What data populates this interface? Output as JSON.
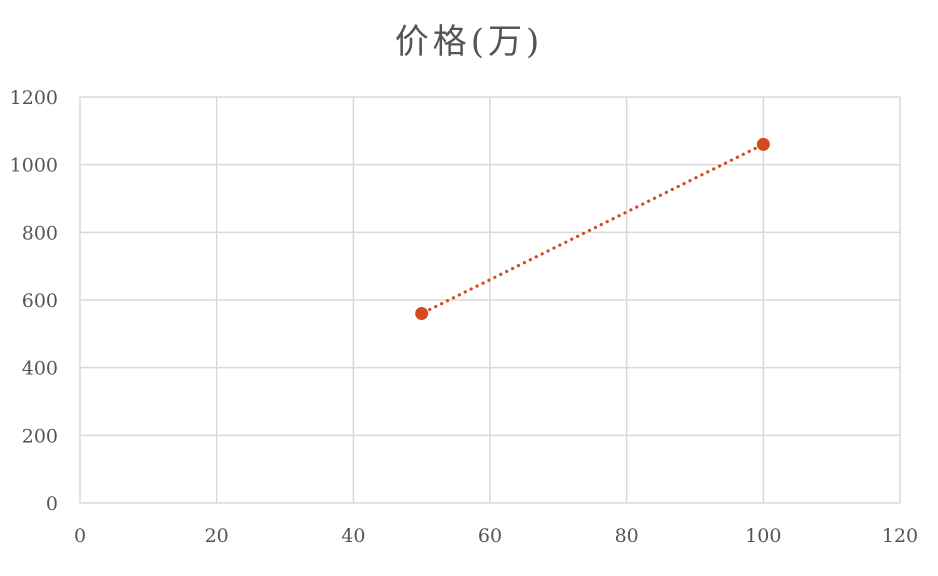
{
  "chart_data": {
    "type": "scatter",
    "title": "价格(万)",
    "xlabel": "",
    "ylabel": "",
    "xlim": [
      0,
      120
    ],
    "ylim": [
      0,
      1200
    ],
    "x_ticks": [
      0,
      20,
      40,
      60,
      80,
      100,
      120
    ],
    "y_ticks": [
      0,
      200,
      400,
      600,
      800,
      1000,
      1200
    ],
    "grid": true,
    "legend": "none",
    "series": [
      {
        "points": [
          {
            "x": 50,
            "y": 560
          },
          {
            "x": 100,
            "y": 1060
          }
        ],
        "color": "#d24a1e",
        "trendline": "linear-dotted"
      }
    ]
  }
}
